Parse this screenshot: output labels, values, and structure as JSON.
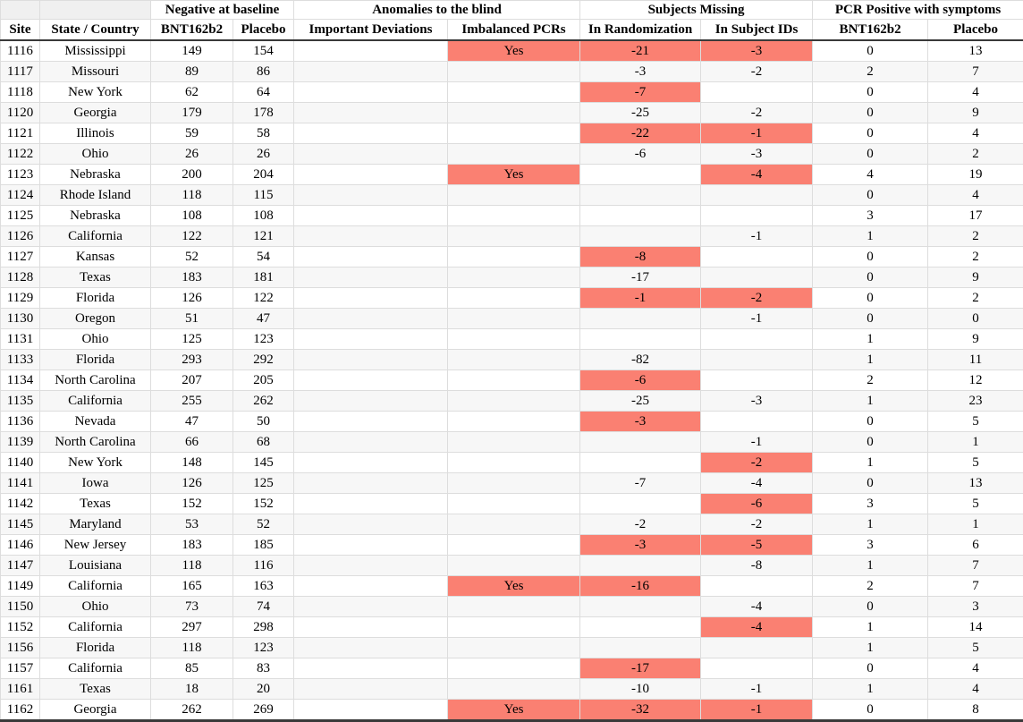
{
  "colors": {
    "highlight": "#FA8072",
    "stripe": "#F7F7F7",
    "grid": "#DDDDDD",
    "header_corner_bg": "#F0F0F0",
    "heavy_rule": "#3A3A3A"
  },
  "chart_data": {
    "type": "table",
    "group_headers": [
      {
        "label": "",
        "colspan": 1
      },
      {
        "label": "",
        "colspan": 1
      },
      {
        "label": "Negative at baseline",
        "colspan": 2
      },
      {
        "label": "Anomalies to the blind",
        "colspan": 2
      },
      {
        "label": "Subjects Missing",
        "colspan": 2
      },
      {
        "label": "PCR Positive with symptoms",
        "colspan": 2
      }
    ],
    "columns": [
      {
        "key": "site",
        "label": "Site"
      },
      {
        "key": "state_country",
        "label": "State / Country"
      },
      {
        "key": "negative_bnt162b2",
        "label": "BNT162b2"
      },
      {
        "key": "negative_placebo",
        "label": "Placebo"
      },
      {
        "key": "important_deviations",
        "label": "Important Deviations",
        "highlight_if_filled": true
      },
      {
        "key": "imbalanced_pcrs",
        "label": "Imbalanced PCRs",
        "highlight_if_filled": true
      },
      {
        "key": "missing_in_randomization",
        "label": "In Randomization",
        "highlight_if_filled": true
      },
      {
        "key": "missing_in_subject_ids",
        "label": "In Subject IDs",
        "highlight_if_filled": true
      },
      {
        "key": "pcr_positive_bnt162b2",
        "label": "BNT162b2"
      },
      {
        "key": "pcr_positive_placebo",
        "label": "Placebo"
      }
    ],
    "rows": [
      [
        "1116",
        "Mississippi",
        "149",
        "154",
        "",
        "Yes",
        "-21",
        "-3",
        "0",
        "13"
      ],
      [
        "1117",
        "Missouri",
        "89",
        "86",
        "",
        "",
        "-3",
        "-2",
        "2",
        "7"
      ],
      [
        "1118",
        "New York",
        "62",
        "64",
        "",
        "",
        "-7",
        "",
        "0",
        "4"
      ],
      [
        "1120",
        "Georgia",
        "179",
        "178",
        "",
        "",
        "-25",
        "-2",
        "0",
        "9"
      ],
      [
        "1121",
        "Illinois",
        "59",
        "58",
        "",
        "",
        "-22",
        "-1",
        "0",
        "4"
      ],
      [
        "1122",
        "Ohio",
        "26",
        "26",
        "",
        "",
        "-6",
        "-3",
        "0",
        "2"
      ],
      [
        "1123",
        "Nebraska",
        "200",
        "204",
        "",
        "Yes",
        "",
        "-4",
        "4",
        "19"
      ],
      [
        "1124",
        "Rhode Island",
        "118",
        "115",
        "",
        "",
        "",
        "",
        "0",
        "4"
      ],
      [
        "1125",
        "Nebraska",
        "108",
        "108",
        "",
        "",
        "",
        "",
        "3",
        "17"
      ],
      [
        "1126",
        "California",
        "122",
        "121",
        "",
        "",
        "",
        "-1",
        "1",
        "2"
      ],
      [
        "1127",
        "Kansas",
        "52",
        "54",
        "",
        "",
        "-8",
        "",
        "0",
        "2"
      ],
      [
        "1128",
        "Texas",
        "183",
        "181",
        "",
        "",
        "-17",
        "",
        "0",
        "9"
      ],
      [
        "1129",
        "Florida",
        "126",
        "122",
        "",
        "",
        "-1",
        "-2",
        "0",
        "2"
      ],
      [
        "1130",
        "Oregon",
        "51",
        "47",
        "",
        "",
        "",
        "-1",
        "0",
        "0"
      ],
      [
        "1131",
        "Ohio",
        "125",
        "123",
        "",
        "",
        "",
        "",
        "1",
        "9"
      ],
      [
        "1133",
        "Florida",
        "293",
        "292",
        "",
        "",
        "-82",
        "",
        "1",
        "11"
      ],
      [
        "1134",
        "North Carolina",
        "207",
        "205",
        "",
        "",
        "-6",
        "",
        "2",
        "12"
      ],
      [
        "1135",
        "California",
        "255",
        "262",
        "",
        "",
        "-25",
        "-3",
        "1",
        "23"
      ],
      [
        "1136",
        "Nevada",
        "47",
        "50",
        "",
        "",
        "-3",
        "",
        "0",
        "5"
      ],
      [
        "1139",
        "North Carolina",
        "66",
        "68",
        "",
        "",
        "",
        "-1",
        "0",
        "1"
      ],
      [
        "1140",
        "New York",
        "148",
        "145",
        "",
        "",
        "",
        "-2",
        "1",
        "5"
      ],
      [
        "1141",
        "Iowa",
        "126",
        "125",
        "",
        "",
        "-7",
        "-4",
        "0",
        "13"
      ],
      [
        "1142",
        "Texas",
        "152",
        "152",
        "",
        "",
        "",
        "-6",
        "3",
        "5"
      ],
      [
        "1145",
        "Maryland",
        "53",
        "52",
        "",
        "",
        "-2",
        "-2",
        "1",
        "1"
      ],
      [
        "1146",
        "New Jersey",
        "183",
        "185",
        "",
        "",
        "-3",
        "-5",
        "3",
        "6"
      ],
      [
        "1147",
        "Louisiana",
        "118",
        "116",
        "",
        "",
        "",
        "-8",
        "1",
        "7"
      ],
      [
        "1149",
        "California",
        "165",
        "163",
        "",
        "Yes",
        "-16",
        "",
        "2",
        "7"
      ],
      [
        "1150",
        "Ohio",
        "73",
        "74",
        "",
        "",
        "",
        "-4",
        "0",
        "3"
      ],
      [
        "1152",
        "California",
        "297",
        "298",
        "",
        "",
        "",
        "-4",
        "1",
        "14"
      ],
      [
        "1156",
        "Florida",
        "118",
        "123",
        "",
        "",
        "",
        "",
        "1",
        "5"
      ],
      [
        "1157",
        "California",
        "85",
        "83",
        "",
        "",
        "-17",
        "",
        "0",
        "4"
      ],
      [
        "1161",
        "Texas",
        "18",
        "20",
        "",
        "",
        "-10",
        "-1",
        "1",
        "4"
      ],
      [
        "1162",
        "Georgia",
        "262",
        "269",
        "",
        "Yes",
        "-32",
        "-1",
        "0",
        "8"
      ]
    ]
  }
}
